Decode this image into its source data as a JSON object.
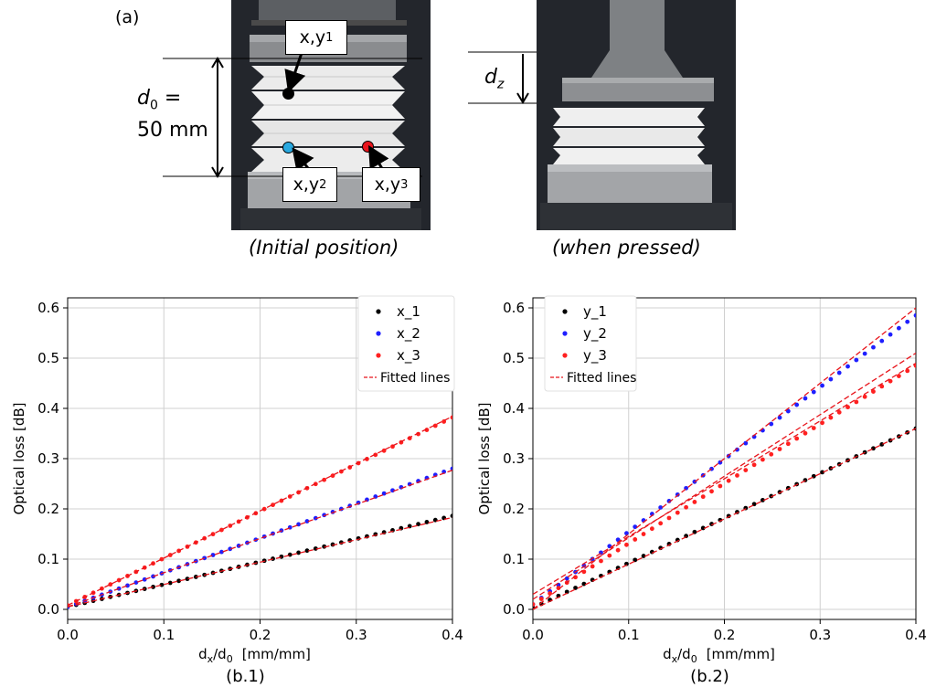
{
  "panel_a": {
    "label": "(a)",
    "initial_caption": "(Initial position)",
    "pressed_caption": "(when pressed)",
    "d0_var": "d",
    "d0_sub": "0",
    "d0_eq": "=",
    "d0_value": "50 mm",
    "dz_var": "d",
    "dz_sub": "z",
    "markers": [
      {
        "text": "x,y",
        "sub": "1",
        "color": "#000000"
      },
      {
        "text": "x,y",
        "sub": "2",
        "color": "#29a9e0"
      },
      {
        "text": "x,y",
        "sub": "3",
        "color": "#e8141b"
      }
    ]
  },
  "chart_data": [
    {
      "type": "scatter",
      "caption": "(b.1)",
      "xlabel_main": "d",
      "xlabel_sub1": "x",
      "xlabel_mid": "/d",
      "xlabel_sub2": "0",
      "xlabel_unit": "[mm/mm]",
      "ylabel": "Optical loss [dB]",
      "xlim": [
        0.0,
        0.4
      ],
      "ylim": [
        -0.02,
        0.62
      ],
      "xticks": [
        "0.0",
        "0.1",
        "0.2",
        "0.3",
        "0.4"
      ],
      "yticks": [
        "0.0",
        "0.1",
        "0.2",
        "0.3",
        "0.4",
        "0.5",
        "0.6"
      ],
      "grid": true,
      "legend_position": "top-right",
      "series": [
        {
          "name": "x_1",
          "color": "#000000",
          "slope": 0.445,
          "intercept": 0.005,
          "y_end": 0.186
        },
        {
          "name": "x_2",
          "color": "#1f1fff",
          "slope": 0.68,
          "intercept": 0.005,
          "y_end": 0.28
        },
        {
          "name": "x_3",
          "color": "#ff2020",
          "slope": 0.94,
          "intercept": 0.008,
          "y_end": 0.382
        }
      ],
      "fit_label": "Fitted lines",
      "fit_color": "#e8141b",
      "fits": [
        {
          "x": [
            0.0,
            0.4
          ],
          "y": [
            0.005,
            0.183
          ]
        },
        {
          "x": [
            0.0,
            0.4
          ],
          "y": [
            0.005,
            0.277
          ]
        },
        {
          "x": [
            0.0,
            0.4
          ],
          "y": [
            0.008,
            0.384
          ]
        }
      ]
    },
    {
      "type": "scatter",
      "caption": "(b.2)",
      "xlabel_main": "d",
      "xlabel_sub1": "x",
      "xlabel_mid": "/d",
      "xlabel_sub2": "0",
      "xlabel_unit": "[mm/mm]",
      "ylabel": "Optical loss [dB]",
      "xlim": [
        0.0,
        0.4
      ],
      "ylim": [
        -0.02,
        0.62
      ],
      "xticks": [
        "0.0",
        "0.1",
        "0.2",
        "0.3",
        "0.4"
      ],
      "yticks": [
        "0.0",
        "0.1",
        "0.2",
        "0.3",
        "0.4",
        "0.5",
        "0.6"
      ],
      "grid": true,
      "legend_position": "top-left",
      "series": [
        {
          "name": "y_1",
          "color": "#000000",
          "slope": 0.895,
          "intercept": 0.003,
          "y_end": 0.36
        },
        {
          "name": "y_2",
          "color": "#1f1fff",
          "slope": 1.45,
          "intercept": 0.01,
          "y_end": 0.585
        },
        {
          "name": "y_3",
          "color": "#ff2020",
          "slope": 1.22,
          "intercept": 0.01,
          "y_end": 0.485
        }
      ],
      "fit_label": "Fitted lines",
      "fit_color": "#e8141b",
      "fits": [
        {
          "x": [
            0.0,
            0.4
          ],
          "y": [
            0.0,
            0.36
          ]
        },
        {
          "x": [
            0.0,
            0.4
          ],
          "y": [
            0.0,
            0.6
          ]
        },
        {
          "x": [
            0.0,
            0.4
          ],
          "y": [
            0.02,
            0.51
          ]
        },
        {
          "x": [
            0.0,
            0.4
          ],
          "y": [
            0.03,
            0.49
          ]
        }
      ]
    }
  ]
}
